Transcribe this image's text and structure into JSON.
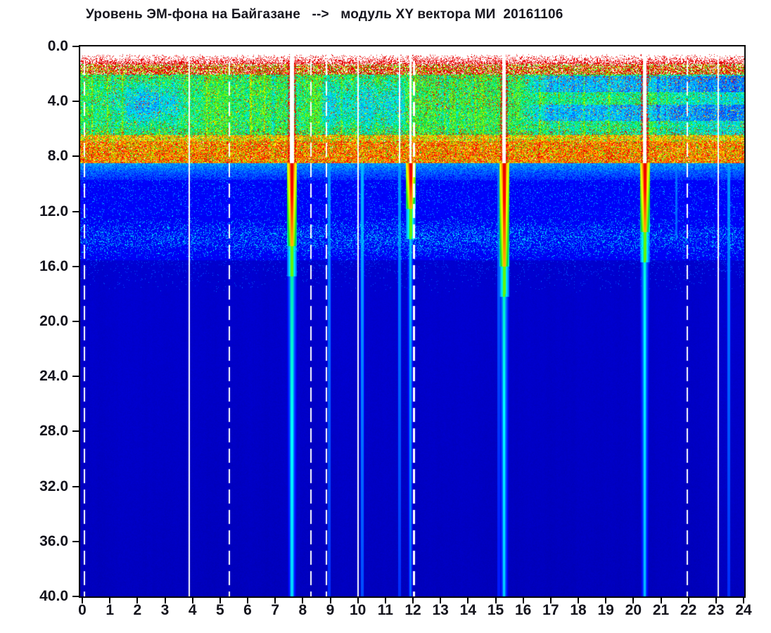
{
  "title": "Уровень ЭМ-фона на Байгазане   -->   модуль XY вектора МИ  20161106",
  "chart_data": {
    "type": "heatmap",
    "title": "Уровень ЭМ-фона на Байгазане --> модуль XY вектора МИ 20161106",
    "date_label": "20161106",
    "xlabel": "",
    "ylabel": "",
    "xlim": [
      0,
      24
    ],
    "ylim": [
      0,
      40
    ],
    "x_tick_labels": [
      "0",
      "1",
      "2",
      "3",
      "4",
      "5",
      "6",
      "7",
      "8",
      "9",
      "10",
      "11",
      "12",
      "13",
      "14",
      "15",
      "16",
      "17",
      "18",
      "19",
      "20",
      "21",
      "22",
      "23",
      "24"
    ],
    "y_tick_labels": [
      "0.0",
      "4.0",
      "8.0",
      "12.0",
      "16.0",
      "20.0",
      "24.0",
      "28.0",
      "32.0",
      "36.0",
      "40.0"
    ],
    "colormap": "jet",
    "legend": "none",
    "grid": "off",
    "colors": {
      "background": "#ffffff",
      "frame": "#000000",
      "deep_blue": "#0000c8",
      "gap_line": "#ffffff"
    },
    "bands": [
      {
        "y_range": [
          0.0,
          0.6
        ],
        "level": "none",
        "description": "white margin below frame, no data"
      },
      {
        "y_range": [
          0.6,
          2.0
        ],
        "level": "high",
        "description": "speckled red band on white"
      },
      {
        "y_range": [
          2.0,
          6.4
        ],
        "level": "medium",
        "description": "green-cyan mottled band with red/yellow speckles, blue patches near 1.5-3.5 h and 9-11.5 h, horizontal cyan stripes after 16 h"
      },
      {
        "y_range": [
          6.4,
          8.4
        ],
        "level": "high",
        "description": "dense red-yellow band"
      },
      {
        "y_range": [
          8.4,
          9.7
        ],
        "level": "med-low",
        "description": "cyan speckle fading into blue"
      },
      {
        "y_range": [
          9.7,
          12.3
        ],
        "level": "low",
        "description": "bright blue"
      },
      {
        "y_range": [
          12.3,
          15.5
        ],
        "level": "low",
        "description": "blue with cyan speckle band centered near 14"
      },
      {
        "y_range": [
          15.5,
          40.0
        ],
        "level": "lowest",
        "description": "deep blue with faint vertical striping"
      }
    ],
    "events": [
      {
        "time": 7.6,
        "type": "strong burst",
        "top_gap": true,
        "red_down_to": 14.5,
        "tail_down_to": 40,
        "strength": 1.0
      },
      {
        "time": 15.3,
        "type": "strong burst",
        "top_gap": true,
        "red_down_to": 16.0,
        "tail_down_to": 40,
        "strength": 0.95
      },
      {
        "time": 20.4,
        "type": "strong burst",
        "top_gap": true,
        "red_down_to": 13.5,
        "tail_down_to": 40,
        "strength": 0.9
      },
      {
        "time": 10.15,
        "type": "weak streak",
        "top_gap": false,
        "red_down_to": 0,
        "tail_down_to": 40,
        "strength": 0.5
      },
      {
        "time": 11.5,
        "type": "weak streak",
        "top_gap": true,
        "red_down_to": 0,
        "tail_down_to": 40,
        "strength": 0.35
      },
      {
        "time": 11.9,
        "type": "moderate streak",
        "top_gap": true,
        "red_down_to": 11.8,
        "tail_down_to": 40,
        "strength": 0.55
      },
      {
        "time": 8.95,
        "type": "weak streak",
        "top_gap": false,
        "red_down_to": 0,
        "tail_down_to": 40,
        "strength": 0.35
      },
      {
        "time": 23.45,
        "type": "weak streak",
        "top_gap": false,
        "red_down_to": 0,
        "tail_down_to": 40,
        "strength": 0.35
      },
      {
        "time": 21.55,
        "type": "faint streak",
        "top_gap": false,
        "red_down_to": 0,
        "tail_down_to": 14,
        "strength": 0.18
      },
      {
        "time": 15.1,
        "type": "faint streak",
        "top_gap": false,
        "red_down_to": 0,
        "tail_down_to": 40,
        "strength": 0.2
      }
    ],
    "time_gaps": {
      "dashed": [
        0.07,
        5.33,
        8.28,
        8.85,
        12.03,
        21.95
      ],
      "solid": [
        3.87,
        10.0,
        23.07
      ]
    }
  }
}
